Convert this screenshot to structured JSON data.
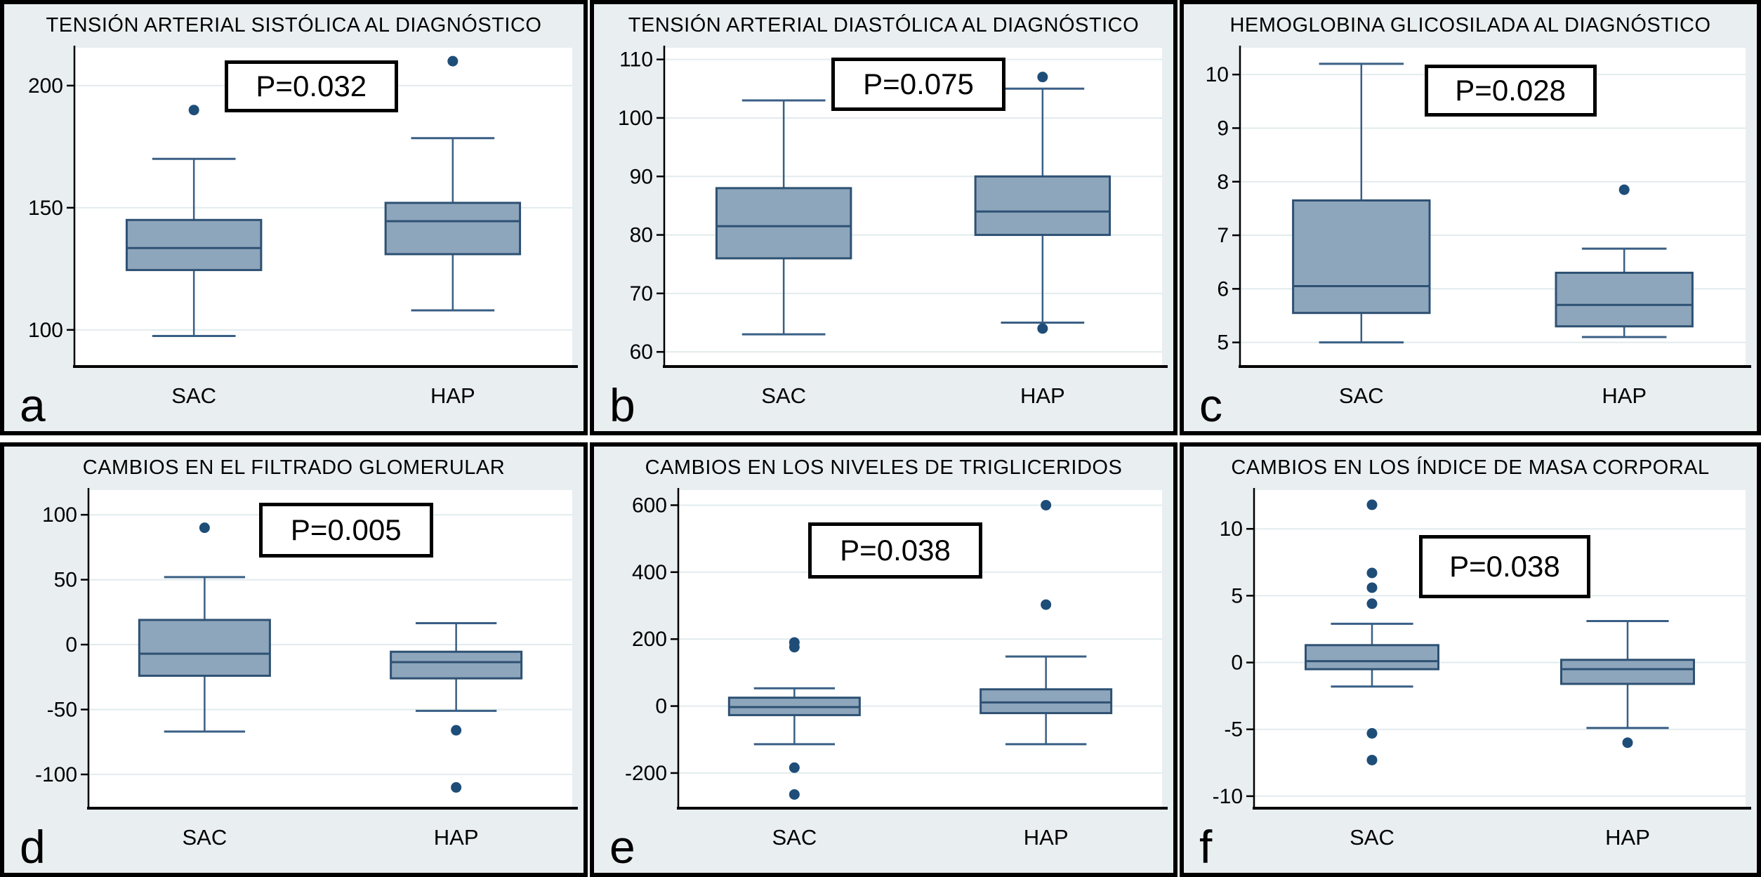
{
  "figure_colors": {
    "panel_background": "#e9eef1",
    "plot_background": "#ffffff",
    "gridline": "#e2ebee",
    "axis": "#000000",
    "box_fill": "#8ea6bc",
    "box_stroke": "#2e5173",
    "whisker_stroke": "#3a5f85",
    "outlier_fill": "#1e4d78",
    "text": "#000000"
  },
  "chart_data": [
    {
      "type": "box",
      "letter": "a",
      "title": "TENSIÓN ARTERIAL SISTÓLICA AL DIAGNÓSTICO",
      "p_label": "P=0.032",
      "categories": [
        "SAC",
        "HAP"
      ],
      "ylabel": "",
      "yticks": [
        200,
        150,
        100
      ],
      "ylim": [
        85,
        215.5
      ],
      "grid": true,
      "series": [
        {
          "name": "SAC",
          "low": 97.5,
          "q1": 124.5,
          "median": 133.5,
          "q3": 145,
          "high": 170,
          "outliers": [
            190
          ]
        },
        {
          "name": "HAP",
          "low": 108,
          "q1": 131,
          "median": 144.5,
          "q3": 152,
          "high": 178.5,
          "outliers": [
            210
          ]
        }
      ]
    },
    {
      "type": "box",
      "letter": "b",
      "title": "TENSIÓN ARTERIAL DIASTÓLICA AL DIAGNÓSTICO",
      "p_label": "P=0.075",
      "categories": [
        "SAC",
        "HAP"
      ],
      "ylabel": "",
      "yticks": [
        110,
        100,
        90,
        80,
        70,
        60
      ],
      "ylim": [
        57.5,
        112
      ],
      "grid": true,
      "series": [
        {
          "name": "SAC",
          "low": 63,
          "q1": 76,
          "median": 81.5,
          "q3": 88,
          "high": 103,
          "outliers": []
        },
        {
          "name": "HAP",
          "low": 65,
          "q1": 80,
          "median": 84,
          "q3": 90,
          "high": 105,
          "outliers": [
            107,
            64
          ]
        }
      ]
    },
    {
      "type": "box",
      "letter": "c",
      "title": "HEMOGLOBINA GLICOSILADA AL DIAGNÓSTICO",
      "p_label": "P=0.028",
      "categories": [
        "SAC",
        "HAP"
      ],
      "ylabel": "",
      "yticks": [
        10,
        9,
        8,
        7,
        6,
        5
      ],
      "ylim": [
        4.55,
        10.5
      ],
      "grid": true,
      "series": [
        {
          "name": "SAC",
          "low": 5.0,
          "q1": 5.55,
          "median": 6.05,
          "q3": 7.65,
          "high": 10.2,
          "outliers": []
        },
        {
          "name": "HAP",
          "low": 5.1,
          "q1": 5.3,
          "median": 5.7,
          "q3": 6.3,
          "high": 6.75,
          "outliers": [
            7.85
          ]
        }
      ]
    },
    {
      "type": "box",
      "letter": "d",
      "title": "CAMBIOS EN EL FILTRADO GLOMERULAR",
      "p_label": "P=0.005",
      "categories": [
        "SAC",
        "HAP"
      ],
      "ylabel": "",
      "yticks": [
        100,
        50,
        0,
        -50,
        -100
      ],
      "ylim": [
        -126,
        119
      ],
      "grid": true,
      "series": [
        {
          "name": "SAC",
          "low": -67,
          "q1": -24,
          "median": -7,
          "q3": 19,
          "high": 52,
          "outliers": [
            90
          ]
        },
        {
          "name": "HAP",
          "low": -51,
          "q1": -26,
          "median": -13.5,
          "q3": -5.5,
          "high": 16.5,
          "outliers": [
            -66,
            -110
          ]
        }
      ]
    },
    {
      "type": "box",
      "letter": "e",
      "title": "CAMBIOS EN LOS NIVELES DE TRIGLICERIDOS",
      "p_label": "P=0.038",
      "categories": [
        "SAC",
        "HAP"
      ],
      "ylabel": "",
      "yticks": [
        600,
        400,
        200,
        0,
        -200
      ],
      "ylim": [
        -305,
        645
      ],
      "grid": true,
      "series": [
        {
          "name": "SAC",
          "low": -114,
          "q1": -27,
          "median": -3,
          "q3": 25,
          "high": 53,
          "outliers": [
            190,
            176,
            -184,
            -264
          ]
        },
        {
          "name": "HAP",
          "low": -114,
          "q1": -21,
          "median": 11,
          "q3": 50,
          "high": 148,
          "outliers": [
            600,
            303
          ]
        }
      ]
    },
    {
      "type": "box",
      "letter": "f",
      "title": "CAMBIOS EN LOS ÍNDICE DE MASA CORPORAL",
      "p_label": "P=0.038",
      "categories": [
        "SAC",
        "HAP"
      ],
      "ylabel": "",
      "yticks": [
        10,
        5,
        0,
        -5,
        -10
      ],
      "ylim": [
        -10.9,
        12.9
      ],
      "grid": true,
      "series": [
        {
          "name": "SAC",
          "low": -1.8,
          "q1": -0.5,
          "median": 0.1,
          "q3": 1.3,
          "high": 2.9,
          "outliers": [
            11.8,
            6.7,
            5.6,
            4.4,
            -5.3,
            -7.3
          ]
        },
        {
          "name": "HAP",
          "low": -4.9,
          "q1": -1.6,
          "median": -0.5,
          "q3": 0.2,
          "high": 3.1,
          "outliers": [
            -6.0
          ]
        }
      ]
    }
  ]
}
